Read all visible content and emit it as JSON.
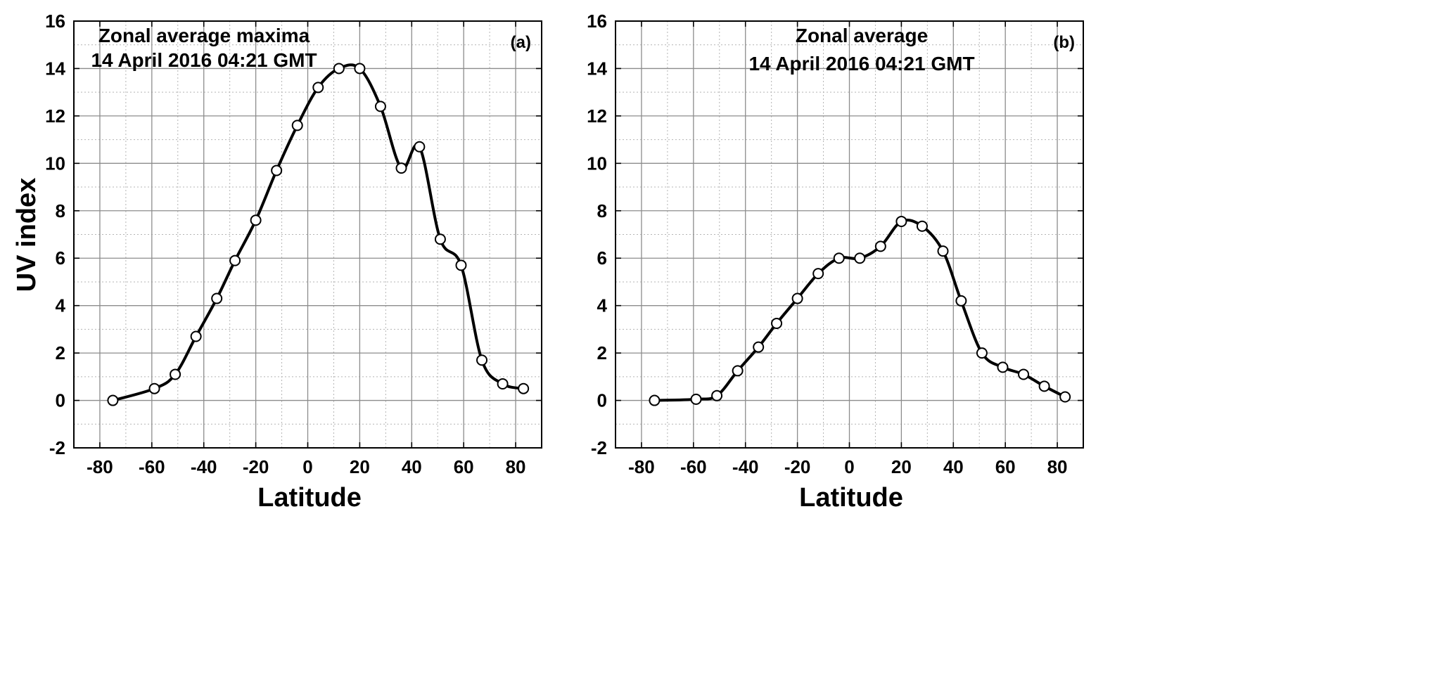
{
  "chart_data": [
    {
      "id": "a",
      "type": "line",
      "panel_label": "(a)",
      "annotation_lines": [
        "Zonal  average maxima",
        "14 April 2016  04:21 GMT"
      ],
      "xlabel": "Latitude",
      "ylabel": "UV index",
      "xlim": [
        -90,
        90
      ],
      "ylim": [
        -2,
        16
      ],
      "xticks": [
        -80,
        -60,
        -40,
        -20,
        0,
        20,
        40,
        60,
        80
      ],
      "yticks": [
        -2,
        0,
        2,
        4,
        6,
        8,
        10,
        12,
        14,
        16
      ],
      "grid": true,
      "x": [
        -75,
        -59,
        -51,
        -43,
        -35,
        -28,
        -20,
        -12,
        -4,
        4,
        12,
        20,
        28,
        36,
        43,
        51,
        59,
        67,
        75,
        83
      ],
      "values": [
        0,
        0.5,
        1.1,
        2.7,
        4.3,
        5.9,
        7.6,
        9.7,
        11.6,
        13.2,
        14.0,
        14.0,
        12.4,
        9.8,
        10.7,
        6.8,
        5.7,
        1.7,
        0.7,
        0.5
      ]
    },
    {
      "id": "b",
      "type": "line",
      "panel_label": "(b)",
      "annotation_lines": [
        "Zonal  average",
        "14 April 2016  04:21 GMT"
      ],
      "xlabel": "Latitude",
      "ylabel": "",
      "xlim": [
        -90,
        90
      ],
      "ylim": [
        -2,
        16
      ],
      "xticks": [
        -80,
        -60,
        -40,
        -20,
        0,
        20,
        40,
        60,
        80
      ],
      "yticks": [
        -2,
        0,
        2,
        4,
        6,
        8,
        10,
        12,
        14,
        16
      ],
      "grid": true,
      "x": [
        -75,
        -59,
        -51,
        -43,
        -35,
        -28,
        -20,
        -12,
        -4,
        4,
        12,
        20,
        28,
        36,
        43,
        51,
        59,
        67,
        75,
        83
      ],
      "values": [
        0,
        0.05,
        0.2,
        1.25,
        2.25,
        3.25,
        4.3,
        5.35,
        6.0,
        6.0,
        6.5,
        7.55,
        7.35,
        6.3,
        4.2,
        2.0,
        1.4,
        1.1,
        0.6,
        0.15
      ]
    }
  ]
}
